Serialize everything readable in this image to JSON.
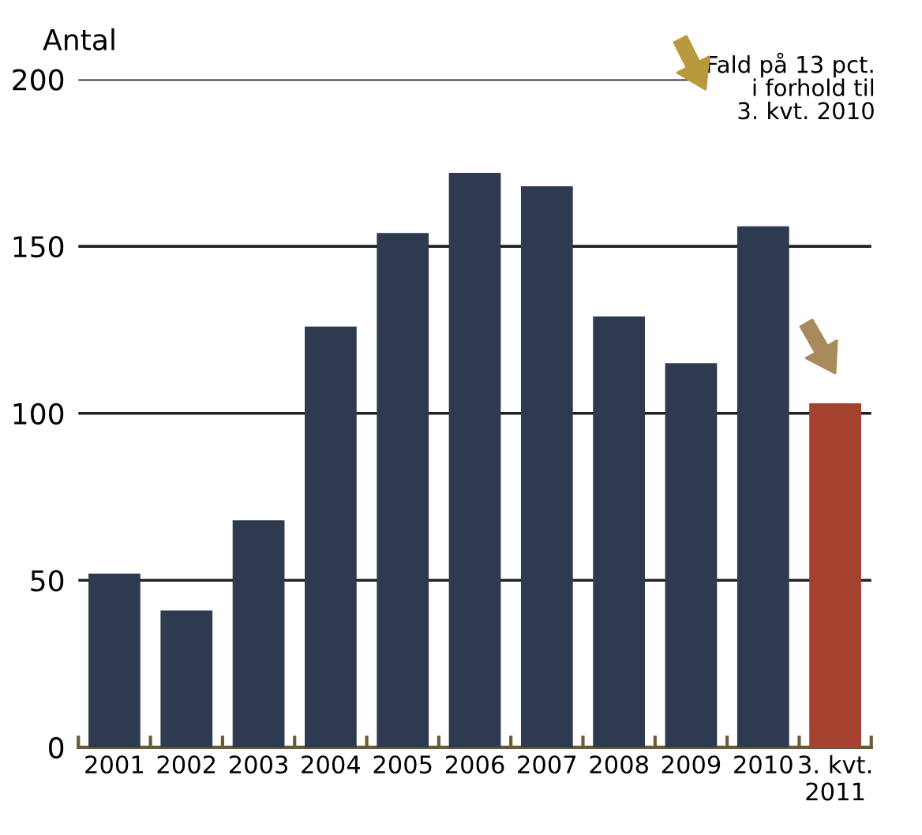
{
  "chart_data": {
    "type": "bar",
    "ylabel": "Antal",
    "categories": [
      "2001",
      "2002",
      "2003",
      "2004",
      "2005",
      "2006",
      "2007",
      "2008",
      "2009",
      "2010",
      "3. kvt.\n2011"
    ],
    "values": [
      52,
      41,
      68,
      126,
      154,
      172,
      168,
      129,
      115,
      156,
      103
    ],
    "colors": [
      "#2e3a4f",
      "#2e3a4f",
      "#2e3a4f",
      "#2e3a4f",
      "#2e3a4f",
      "#2e3a4f",
      "#2e3a4f",
      "#2e3a4f",
      "#2e3a4f",
      "#2e3a4f",
      "#a5412f"
    ],
    "ylim": [
      0,
      200
    ],
    "yticks": [
      0,
      50,
      100,
      150,
      200
    ],
    "grid": "y",
    "annotations": [
      "Fald på 13 pct.\ni forhold til\n3. kvt. 2010"
    ]
  }
}
